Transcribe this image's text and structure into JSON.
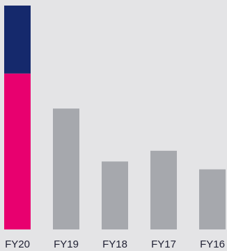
{
  "chart_data": {
    "type": "bar",
    "stacked": true,
    "categories": [
      "FY20",
      "FY19",
      "FY18",
      "FY17",
      "FY16"
    ],
    "series": [
      {
        "values": [
          218,
          169,
          95,
          110,
          84
        ]
      },
      {
        "values": [
          95,
          0,
          0,
          0,
          0
        ]
      }
    ],
    "ylim": [
      0,
      313
    ],
    "grid": false,
    "legend": "none",
    "colors": {
      "background": "#e4e4e6",
      "highlight_primary": "#e8006f",
      "highlight_secondary": "#15296c",
      "other_bars": "#a6a8ad",
      "label": "#1f2033"
    },
    "highlight_category": "FY20"
  }
}
